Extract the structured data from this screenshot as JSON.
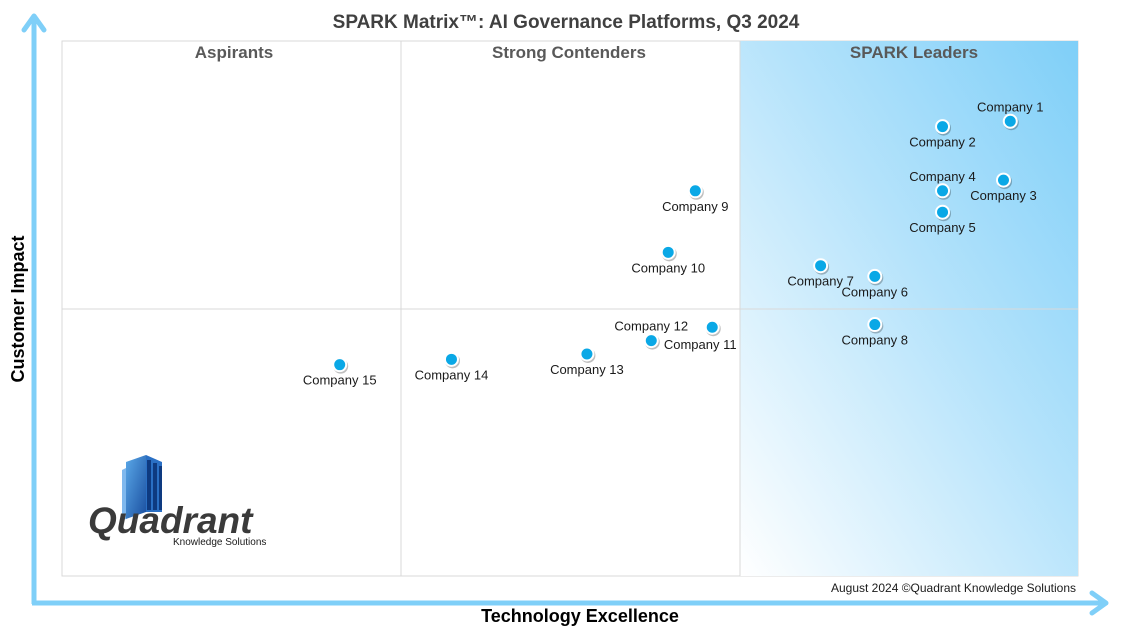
{
  "chart_data": {
    "type": "scatter",
    "title": "SPARK Matrix™: AI Governance Platforms, Q3 2024",
    "xlabel": "Technology Excellence",
    "ylabel": "Customer Impact",
    "quadrants": [
      "Aspirants",
      "Strong Contenders",
      "SPARK Leaders"
    ],
    "xlim": [
      0,
      3
    ],
    "ylim": [
      0,
      2
    ],
    "grid": true,
    "points": [
      {
        "name": "Company 1",
        "x": 2.8,
        "y": 1.7,
        "label_pos": "above"
      },
      {
        "name": "Company 2",
        "x": 2.6,
        "y": 1.68,
        "label_pos": "below"
      },
      {
        "name": "Company 3",
        "x": 2.78,
        "y": 1.48,
        "label_pos": "below"
      },
      {
        "name": "Company 4",
        "x": 2.6,
        "y": 1.44,
        "label_pos": "above"
      },
      {
        "name": "Company 5",
        "x": 2.6,
        "y": 1.36,
        "label_pos": "below"
      },
      {
        "name": "Company 6",
        "x": 2.4,
        "y": 1.12,
        "label_pos": "below"
      },
      {
        "name": "Company 7",
        "x": 2.24,
        "y": 1.16,
        "label_pos": "below"
      },
      {
        "name": "Company 8",
        "x": 2.4,
        "y": 0.94,
        "label_pos": "below"
      },
      {
        "name": "Company 9",
        "x": 1.87,
        "y": 1.44,
        "label_pos": "below"
      },
      {
        "name": "Company 10",
        "x": 1.79,
        "y": 1.21,
        "label_pos": "below"
      },
      {
        "name": "Company 11",
        "x": 1.92,
        "y": 0.93,
        "label_pos": "below-right"
      },
      {
        "name": "Company 12",
        "x": 1.74,
        "y": 0.88,
        "label_pos": "above"
      },
      {
        "name": "Company 13",
        "x": 1.55,
        "y": 0.83,
        "label_pos": "below"
      },
      {
        "name": "Company 14",
        "x": 1.15,
        "y": 0.81,
        "label_pos": "below"
      },
      {
        "name": "Company 15",
        "x": 0.82,
        "y": 0.79,
        "label_pos": "below"
      }
    ],
    "footer": "August 2024 ©Quadrant Knowledge Solutions",
    "colors": {
      "point": "#0aa8e6",
      "leaders_fill": "#7fcff8",
      "axis_arrow": "#7fcff8"
    }
  },
  "logo": {
    "name": "Quadrant",
    "tagline": "Knowledge Solutions"
  }
}
